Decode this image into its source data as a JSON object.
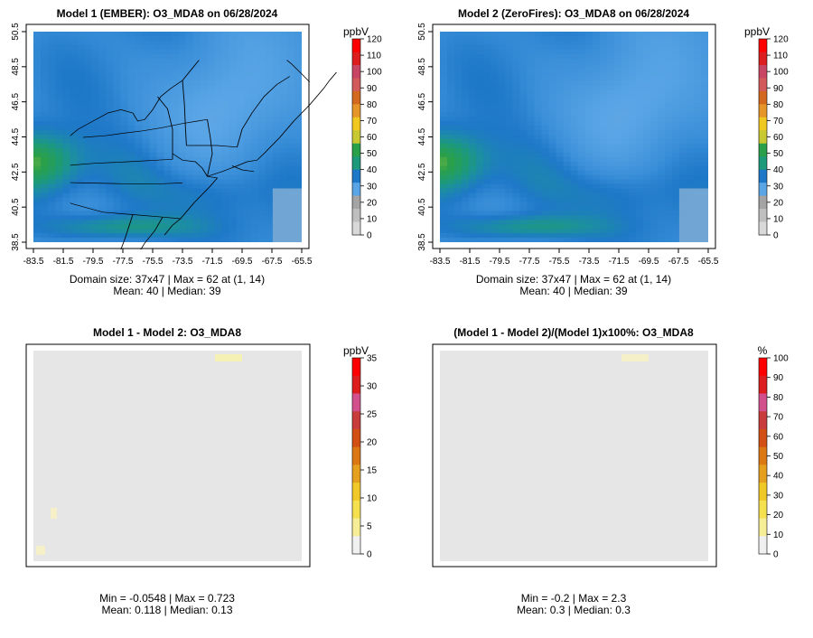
{
  "chart_data": [
    {
      "type": "heatmap",
      "title": "Model 1 (EMBER): O3_MDA8 on 06/28/2024",
      "x_ticks": [
        "-83.5",
        "-81.5",
        "-79.5",
        "-77.5",
        "-75.5",
        "-73.5",
        "-71.5",
        "-69.5",
        "-67.5",
        "-65.5"
      ],
      "y_ticks": [
        "38.5",
        "40.5",
        "42.5",
        "44.5",
        "46.5",
        "48.5",
        "50.5"
      ],
      "xlim": [
        -83.5,
        -65.5
      ],
      "ylim": [
        38.5,
        50.5
      ],
      "grid_size": "37x47",
      "field_range": [
        16,
        62
      ],
      "colorbar": {
        "unit": "ppbV",
        "ticks": [
          "0",
          "10",
          "20",
          "30",
          "40",
          "50",
          "60",
          "70",
          "80",
          "90",
          "100",
          "110",
          "120"
        ],
        "range": [
          0,
          120
        ],
        "palette": "ozone"
      },
      "stats": [
        "Domain size: 37x47 | Max = 62 at (1, 14)",
        "Mean: 40 |  Median: 39"
      ]
    },
    {
      "type": "heatmap",
      "title": "Model 2 (ZeroFires): O3_MDA8 on 06/28/2024",
      "x_ticks": [
        "-83.5",
        "-81.5",
        "-79.5",
        "-77.5",
        "-75.5",
        "-73.5",
        "-71.5",
        "-69.5",
        "-67.5",
        "-65.5"
      ],
      "y_ticks": [
        "38.5",
        "40.5",
        "42.5",
        "44.5",
        "46.5",
        "48.5",
        "50.5"
      ],
      "xlim": [
        -83.5,
        -65.5
      ],
      "ylim": [
        38.5,
        50.5
      ],
      "grid_size": "37x47",
      "field_range": [
        16,
        62
      ],
      "colorbar": {
        "unit": "ppbV",
        "ticks": [
          "0",
          "10",
          "20",
          "30",
          "40",
          "50",
          "60",
          "70",
          "80",
          "90",
          "100",
          "110",
          "120"
        ],
        "range": [
          0,
          120
        ],
        "palette": "ozone"
      },
      "stats": [
        "Domain size: 37x47 | Max = 62 at (1, 14)",
        "Mean: 40 |  Median: 39"
      ]
    },
    {
      "type": "heatmap",
      "title": "Model 1 - Model 2: O3_MDA8",
      "field_range": [
        -0.0548,
        0.723
      ],
      "colorbar": {
        "unit": "ppbV",
        "ticks": [
          "0",
          "5",
          "10",
          "15",
          "20",
          "25",
          "30",
          "35"
        ],
        "range": [
          0,
          35
        ],
        "palette": "diff"
      },
      "stats": [
        "Min = -0.0548 | Max = 0.723",
        "Mean: 0.118 |  Median: 0.13"
      ]
    },
    {
      "type": "heatmap",
      "title": "(Model 1 - Model 2)/(Model 1)x100%: O3_MDA8",
      "field_range": [
        -0.2,
        2.3
      ],
      "colorbar": {
        "unit": "%",
        "ticks": [
          "0",
          "10",
          "20",
          "30",
          "40",
          "50",
          "60",
          "70",
          "80",
          "90",
          "100"
        ],
        "range": [
          0,
          100
        ],
        "palette": "diff"
      },
      "stats": [
        "Min = -0.2 | Max = 2.3",
        "Mean: 0.3 |  Median: 0.3"
      ]
    }
  ],
  "colors": {
    "ozone": [
      "#d9d9d9",
      "#bfbfbf",
      "#a4a4a4",
      "#5aa5e6",
      "#1e78c8",
      "#1c9a7a",
      "#2aa04a",
      "#c8c832",
      "#f0c820",
      "#e69628",
      "#d2691e",
      "#d25a5a",
      "#c84664",
      "#dc1e1e",
      "#ff0000"
    ],
    "diff": [
      "#f0f0f0",
      "#f5ee96",
      "#f5e050",
      "#f0c828",
      "#e6a020",
      "#dc7814",
      "#d25014",
      "#c83c3c",
      "#d2508c",
      "#dc1e1e",
      "#ff0000"
    ],
    "background": "#e6e6e6",
    "boundary": "#000000"
  }
}
